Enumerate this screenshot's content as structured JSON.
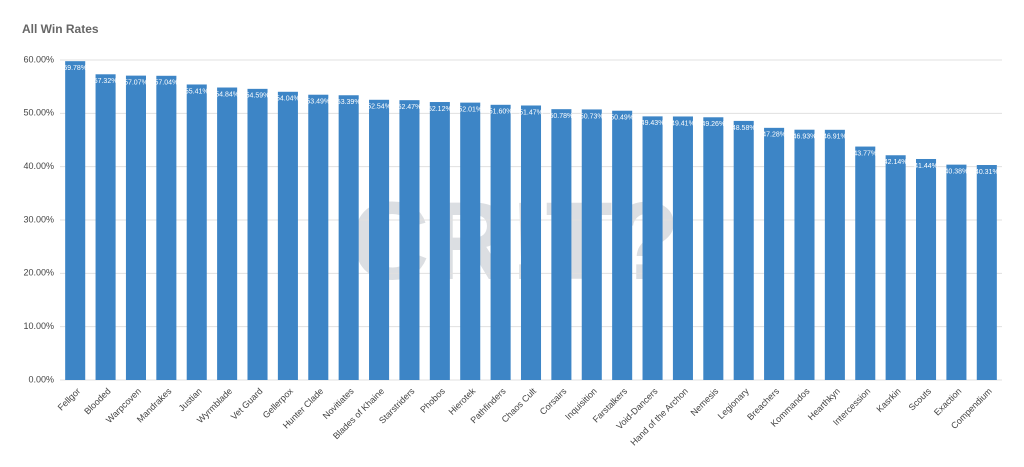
{
  "chart_data": {
    "type": "bar",
    "title": "All Win Rates",
    "watermark": "CR!T?",
    "categories": [
      "Fellgor",
      "Blooded",
      "Warpcoven",
      "Mandrakes",
      "Justian",
      "Wyrmblade",
      "Vet Guard",
      "Gellerpox",
      "Hunter Clade",
      "Novitiates",
      "Blades of Khaine",
      "Starstriders",
      "Phobos",
      "Hierotek",
      "Pathfinders",
      "Chaos Cult",
      "Corsairs",
      "Inquisition",
      "Farstalkers",
      "Void-Dancers",
      "Hand of the Archon",
      "Nemesis",
      "Legionary",
      "Breachers",
      "Kommandos",
      "Hearthkyn",
      "Intercession",
      "Kasrkin",
      "Scouts",
      "Exaction",
      "Compendium"
    ],
    "values": [
      59.78,
      57.32,
      57.07,
      57.04,
      55.41,
      54.84,
      54.59,
      54.04,
      53.49,
      53.39,
      52.54,
      52.47,
      52.12,
      52.01,
      51.6,
      51.47,
      50.78,
      50.73,
      50.49,
      49.43,
      49.41,
      49.26,
      48.58,
      47.28,
      46.93,
      46.91,
      43.77,
      42.14,
      41.44,
      40.38,
      40.31
    ],
    "value_labels": [
      "59.78%",
      "57.32%",
      "57.07%",
      "57.04%",
      "55.41%",
      "54.84%",
      "54.59%",
      "54.04%",
      "53.49%",
      "53.39%",
      "52.54%",
      "52.47%",
      "52.12%",
      "52.01%",
      "51.60%",
      "51.47%",
      "50.78%",
      "50.73%",
      "50.49%",
      "49.43%",
      "49.41%",
      "49.26%",
      "48.58%",
      "47.28%",
      "46.93%",
      "46.91%",
      "43.77%",
      "42.14%",
      "41.44%",
      "40.38%",
      "40.31%"
    ],
    "color": "#3d85c6",
    "ylim": [
      0,
      60
    ],
    "yticks": [
      {
        "value": 0,
        "label": "0.00%"
      },
      {
        "value": 10,
        "label": "10.00%"
      },
      {
        "value": 20,
        "label": "20.00%"
      },
      {
        "value": 30,
        "label": "30.00%"
      },
      {
        "value": 40,
        "label": "40.00%"
      },
      {
        "value": 50,
        "label": "50.00%"
      },
      {
        "value": 60,
        "label": "60.00%"
      }
    ],
    "grid": true
  }
}
